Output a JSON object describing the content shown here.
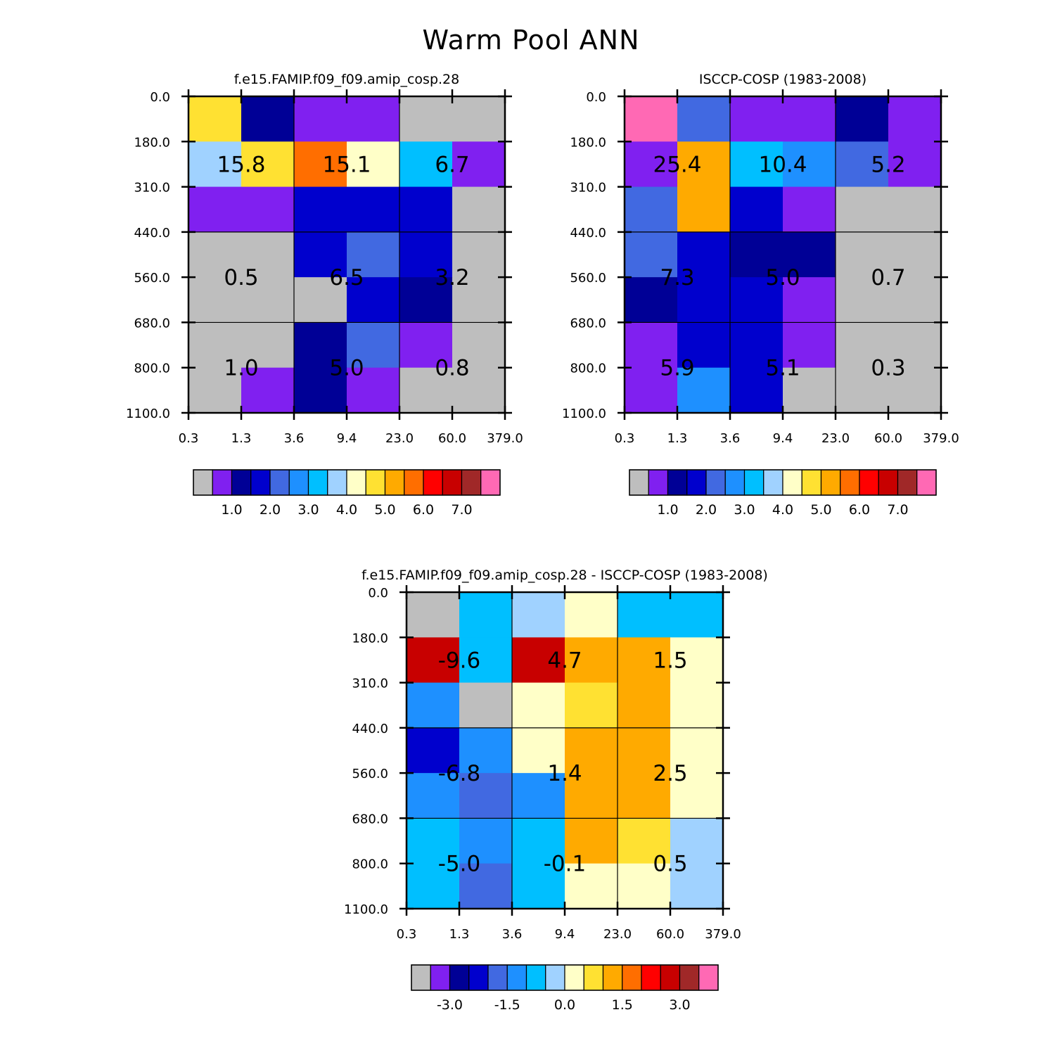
{
  "figure": {
    "title": "Warm Pool ANN"
  },
  "colors": {
    "palette": [
      "#bebebe",
      "#8020f0",
      "#000096",
      "#0000cd",
      "#4169e1",
      "#1e90ff",
      "#00bfff",
      "#a0d2ff",
      "#ffffc8",
      "#ffe132",
      "#ffaa00",
      "#ff6e00",
      "#ff0000",
      "#c80000",
      "#a02828",
      "#ff69b4"
    ]
  },
  "chart_data": [
    {
      "type": "heatmap",
      "id": "model",
      "title": "f.e15.FAMIP.f09_f09.amip_cosp.28",
      "xlabel": "",
      "ylabel": "",
      "x_tick_labels": [
        "0.3",
        "1.3",
        "3.6",
        "9.4",
        "23.0",
        "60.0",
        "379.0"
      ],
      "y_tick_labels": [
        "0.0",
        "180.0",
        "310.0",
        "440.0",
        "560.0",
        "680.0",
        "800.0",
        "1100.0"
      ],
      "cell_color_index": [
        [
          9,
          2,
          1,
          1,
          0,
          0
        ],
        [
          7,
          9,
          11,
          8,
          6,
          1
        ],
        [
          1,
          1,
          3,
          3,
          3,
          0
        ],
        [
          0,
          0,
          3,
          4,
          3,
          0
        ],
        [
          0,
          0,
          0,
          3,
          2,
          0
        ],
        [
          0,
          0,
          2,
          4,
          1,
          0
        ],
        [
          0,
          1,
          2,
          1,
          0,
          0
        ]
      ],
      "box_sums": [
        {
          "row": 0,
          "col": 0,
          "label": "15.8"
        },
        {
          "row": 0,
          "col": 1,
          "label": "15.1"
        },
        {
          "row": 0,
          "col": 2,
          "label": "6.7"
        },
        {
          "row": 1,
          "col": 0,
          "label": "0.5"
        },
        {
          "row": 1,
          "col": 1,
          "label": "6.5"
        },
        {
          "row": 1,
          "col": 2,
          "label": "3.2"
        },
        {
          "row": 2,
          "col": 0,
          "label": "1.0"
        },
        {
          "row": 2,
          "col": 1,
          "label": "5.0"
        },
        {
          "row": 2,
          "col": 2,
          "label": "0.8"
        }
      ],
      "colorbar": {
        "tick_labels": [
          "1.0",
          "2.0",
          "3.0",
          "4.0",
          "5.0",
          "6.0",
          "7.0"
        ],
        "tick_boundaries": [
          2,
          4,
          6,
          8,
          10,
          12,
          14
        ]
      }
    },
    {
      "type": "heatmap",
      "id": "obs",
      "title": "ISCCP-COSP (1983-2008)",
      "xlabel": "",
      "ylabel": "",
      "x_tick_labels": [
        "0.3",
        "1.3",
        "3.6",
        "9.4",
        "23.0",
        "60.0",
        "379.0"
      ],
      "y_tick_labels": [
        "0.0",
        "180.0",
        "310.0",
        "440.0",
        "560.0",
        "680.0",
        "800.0",
        "1100.0"
      ],
      "cell_color_index": [
        [
          15,
          4,
          1,
          1,
          2,
          1
        ],
        [
          1,
          10,
          6,
          5,
          4,
          1
        ],
        [
          4,
          10,
          3,
          1,
          0,
          0
        ],
        [
          4,
          3,
          2,
          2,
          0,
          0
        ],
        [
          2,
          3,
          3,
          1,
          0,
          0
        ],
        [
          1,
          3,
          3,
          1,
          0,
          0
        ],
        [
          1,
          5,
          3,
          0,
          0,
          0
        ]
      ],
      "box_sums": [
        {
          "row": 0,
          "col": 0,
          "label": "25.4"
        },
        {
          "row": 0,
          "col": 1,
          "label": "10.4"
        },
        {
          "row": 0,
          "col": 2,
          "label": "5.2"
        },
        {
          "row": 1,
          "col": 0,
          "label": "7.3"
        },
        {
          "row": 1,
          "col": 1,
          "label": "5.0"
        },
        {
          "row": 1,
          "col": 2,
          "label": "0.7"
        },
        {
          "row": 2,
          "col": 0,
          "label": "5.9"
        },
        {
          "row": 2,
          "col": 1,
          "label": "5.1"
        },
        {
          "row": 2,
          "col": 2,
          "label": "0.3"
        }
      ],
      "colorbar": {
        "tick_labels": [
          "1.0",
          "2.0",
          "3.0",
          "4.0",
          "5.0",
          "6.0",
          "7.0"
        ],
        "tick_boundaries": [
          2,
          4,
          6,
          8,
          10,
          12,
          14
        ]
      }
    },
    {
      "type": "heatmap",
      "id": "diff",
      "title": "f.e15.FAMIP.f09_f09.amip_cosp.28 - ISCCP-COSP (1983-2008)",
      "xlabel": "",
      "ylabel": "",
      "x_tick_labels": [
        "0.3",
        "1.3",
        "3.6",
        "9.4",
        "23.0",
        "60.0",
        "379.0"
      ],
      "y_tick_labels": [
        "0.0",
        "180.0",
        "310.0",
        "440.0",
        "560.0",
        "680.0",
        "800.0",
        "1100.0"
      ],
      "cell_color_index": [
        [
          0,
          6,
          7,
          8,
          6,
          6
        ],
        [
          13,
          6,
          13,
          10,
          10,
          8
        ],
        [
          5,
          0,
          8,
          9,
          10,
          8
        ],
        [
          3,
          5,
          8,
          10,
          10,
          8
        ],
        [
          5,
          4,
          5,
          10,
          10,
          8
        ],
        [
          6,
          5,
          6,
          10,
          9,
          7
        ],
        [
          6,
          4,
          6,
          8,
          8,
          7
        ]
      ],
      "box_sums": [
        {
          "row": 0,
          "col": 0,
          "label": "-9.6"
        },
        {
          "row": 0,
          "col": 1,
          "label": "4.7"
        },
        {
          "row": 0,
          "col": 2,
          "label": "1.5"
        },
        {
          "row": 1,
          "col": 0,
          "label": "-6.8"
        },
        {
          "row": 1,
          "col": 1,
          "label": "1.4"
        },
        {
          "row": 1,
          "col": 2,
          "label": "2.5"
        },
        {
          "row": 2,
          "col": 0,
          "label": "-5.0"
        },
        {
          "row": 2,
          "col": 1,
          "label": "-0.1"
        },
        {
          "row": 2,
          "col": 2,
          "label": "0.5"
        }
      ],
      "colorbar": {
        "tick_labels": [
          "-3.0",
          "-1.5",
          "0.0",
          "1.5",
          "3.0"
        ],
        "tick_boundaries": [
          2,
          5,
          8,
          11,
          14
        ]
      }
    }
  ]
}
